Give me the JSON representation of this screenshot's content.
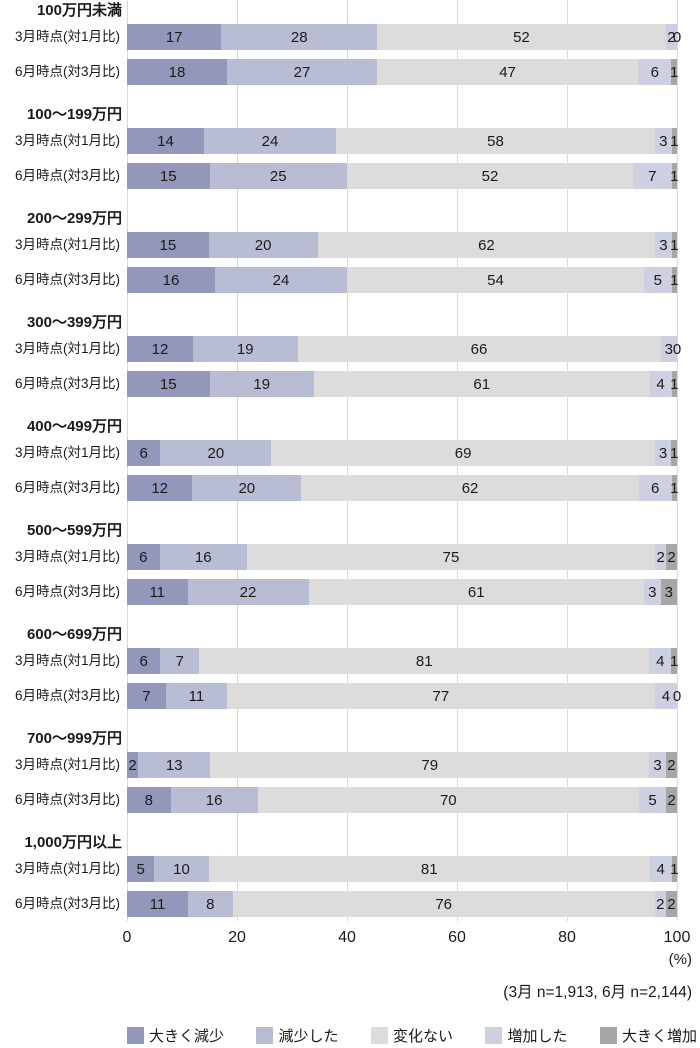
{
  "chart_data": {
    "type": "bar",
    "stacked": true,
    "orientation": "horizontal",
    "unit": "%",
    "x_axis": {
      "ticks": [
        0,
        20,
        40,
        60,
        80,
        100
      ],
      "max": 100,
      "label": "(%)"
    },
    "note": "(3月 n=1,913, 6月 n=2,144)",
    "legend": [
      {
        "label": "大きく減少",
        "color": "#9398bb"
      },
      {
        "label": "減少した",
        "color": "#b9bdd4"
      },
      {
        "label": "変化ない",
        "color": "#dcdcdc"
      },
      {
        "label": "増加した",
        "color": "#cdd0e0"
      },
      {
        "label": "大きく増加",
        "color": "#a7a7a7"
      }
    ],
    "row_labels": [
      "3月時点(対1月比)",
      "6月時点(対3月比)"
    ],
    "groups": [
      {
        "category": "100万円未満",
        "rows": [
          [
            17,
            28,
            52,
            2,
            0
          ],
          [
            18,
            27,
            47,
            6,
            1
          ]
        ]
      },
      {
        "category": "100〜199万円",
        "rows": [
          [
            14,
            24,
            58,
            3,
            1
          ],
          [
            15,
            25,
            52,
            7,
            1
          ]
        ]
      },
      {
        "category": "200〜299万円",
        "rows": [
          [
            15,
            20,
            62,
            3,
            1
          ],
          [
            16,
            24,
            54,
            5,
            1
          ]
        ]
      },
      {
        "category": "300〜399万円",
        "rows": [
          [
            12,
            19,
            66,
            3,
            0
          ],
          [
            15,
            19,
            61,
            4,
            1
          ]
        ]
      },
      {
        "category": "400〜499万円",
        "rows": [
          [
            6,
            20,
            69,
            3,
            1
          ],
          [
            12,
            20,
            62,
            6,
            1
          ]
        ]
      },
      {
        "category": "500〜599万円",
        "rows": [
          [
            6,
            16,
            75,
            2,
            2
          ],
          [
            11,
            22,
            61,
            3,
            3
          ]
        ]
      },
      {
        "category": "600〜699万円",
        "rows": [
          [
            6,
            7,
            81,
            4,
            1
          ],
          [
            7,
            11,
            77,
            4,
            0
          ]
        ]
      },
      {
        "category": "700〜999万円",
        "rows": [
          [
            2,
            13,
            79,
            3,
            2
          ],
          [
            8,
            16,
            70,
            5,
            2
          ]
        ]
      },
      {
        "category": "1,000万円以上",
        "rows": [
          [
            5,
            10,
            81,
            4,
            1
          ],
          [
            11,
            8,
            76,
            2,
            2
          ]
        ]
      }
    ]
  }
}
